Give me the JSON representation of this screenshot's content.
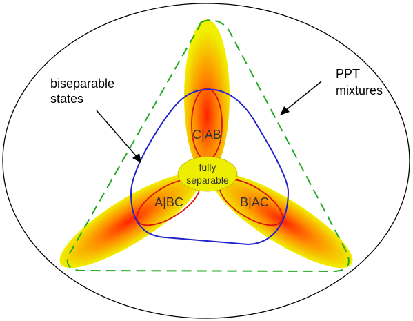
{
  "labels": {
    "biseparable_line1": "biseparable",
    "biseparable_line2": "states",
    "ppt_line1": "PPT",
    "ppt_line2": "mixtures",
    "petal_top": "C|AB",
    "petal_left": "A|BC",
    "petal_right": "B|AC",
    "center_line1": "fully",
    "center_line2": "separable"
  },
  "colors": {
    "outer_ellipse": "#000000",
    "ppt_dashed": "#22aa22",
    "biseparable_curve": "#2222cc",
    "petal_inner_ring": "#dd1111",
    "petal_gradient_center": "#ff2200",
    "petal_gradient_mid": "#ff9900",
    "petal_gradient_edge": "#eeee00",
    "center_fill": "#eeee00"
  }
}
